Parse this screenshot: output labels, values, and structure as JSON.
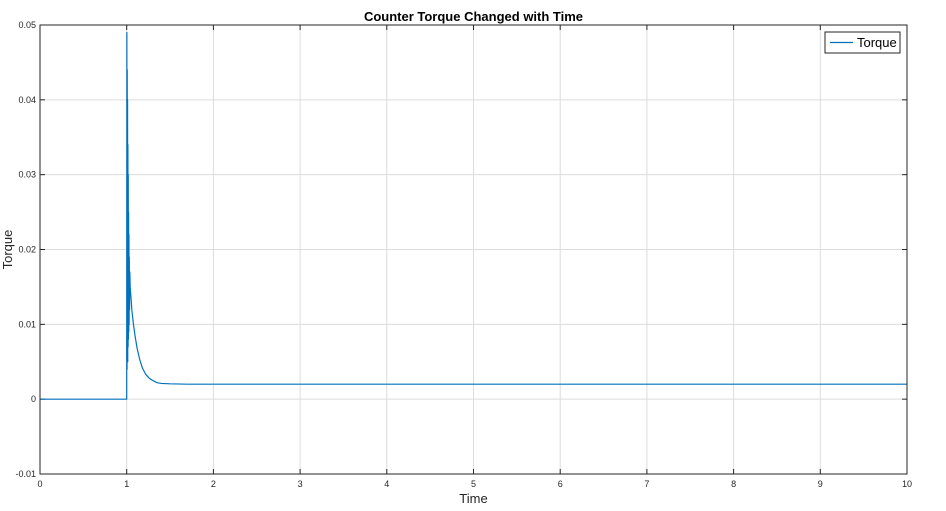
{
  "chart_data": {
    "type": "line",
    "title": "Counter Torque Changed with Time",
    "xlabel": "Time",
    "ylabel": "Torque",
    "xlim": [
      0,
      10
    ],
    "ylim": [
      -0.01,
      0.05
    ],
    "xticks": [
      0,
      1,
      2,
      3,
      4,
      5,
      6,
      7,
      8,
      9,
      10
    ],
    "xtick_labels": [
      "0",
      "1",
      "2",
      "3",
      "4",
      "5",
      "6",
      "7",
      "8",
      "9",
      "10"
    ],
    "yticks": [
      -0.01,
      0,
      0.01,
      0.02,
      0.03,
      0.04,
      0.05
    ],
    "ytick_labels": [
      "-0.01",
      "0",
      "0.01",
      "0.02",
      "0.03",
      "0.04",
      "0.05"
    ],
    "grid": true,
    "legend_position": "top-right",
    "series": [
      {
        "name": "Torque",
        "color": "#0072bd",
        "x": [
          0,
          1.0,
          1.002,
          1.004,
          1.006,
          1.008,
          1.01,
          1.012,
          1.014,
          1.016,
          1.018,
          1.02,
          1.022,
          1.024,
          1.026,
          1.028,
          1.03,
          1.033,
          1.036,
          1.04,
          1.05,
          1.06,
          1.08,
          1.1,
          1.12,
          1.15,
          1.18,
          1.22,
          1.26,
          1.3,
          1.35,
          1.4,
          1.5,
          1.7,
          2.0,
          3.0,
          5.0,
          7.0,
          10.0
        ],
        "y": [
          0,
          0,
          0.049,
          0.004,
          0.044,
          0.006,
          0.04,
          0.005,
          0.034,
          0.007,
          0.03,
          0.008,
          0.025,
          0.009,
          0.022,
          0.01,
          0.019,
          0.012,
          0.017,
          0.015,
          0.0135,
          0.0118,
          0.0098,
          0.0082,
          0.0068,
          0.0053,
          0.0042,
          0.0033,
          0.0028,
          0.0025,
          0.0022,
          0.0021,
          0.00205,
          0.002,
          0.002,
          0.002,
          0.002,
          0.002,
          0.002
        ]
      }
    ]
  }
}
